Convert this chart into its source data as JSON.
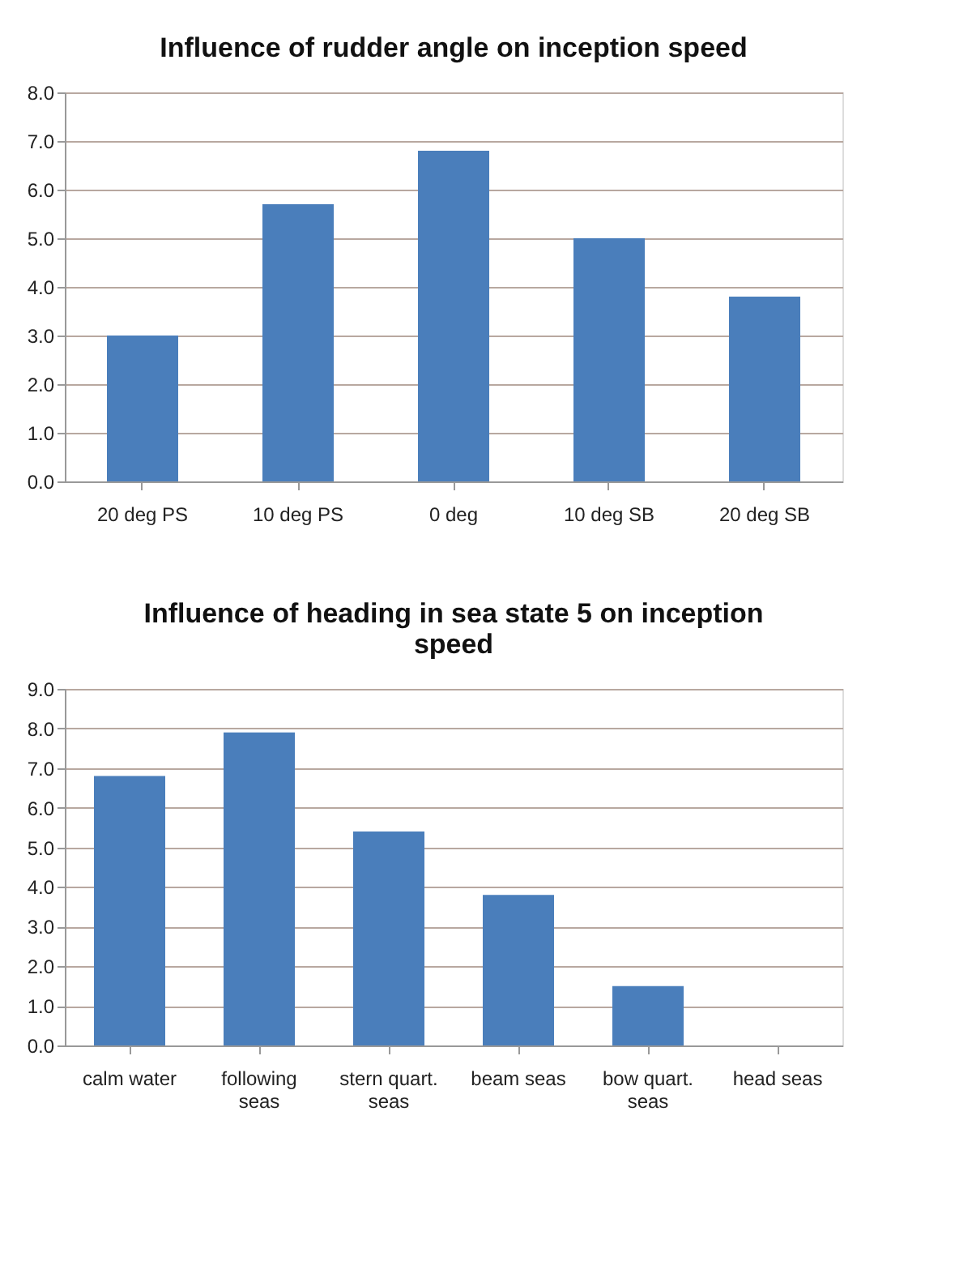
{
  "chart_data": [
    {
      "type": "bar",
      "title": "Influence of rudder angle on inception speed",
      "categories": [
        "20 deg PS",
        "10 deg PS",
        "0 deg",
        "10 deg SB",
        "20 deg SB"
      ],
      "values": [
        3.0,
        5.7,
        6.8,
        5.0,
        3.8
      ],
      "color": "#4a7ebb",
      "ylim": [
        0,
        8
      ],
      "yticks": [
        {
          "value": 0,
          "label": "0.0"
        },
        {
          "value": 1,
          "label": "1.0"
        },
        {
          "value": 2,
          "label": "2.0"
        },
        {
          "value": 3,
          "label": "3.0"
        },
        {
          "value": 4,
          "label": "4.0"
        },
        {
          "value": 5,
          "label": "5.0"
        },
        {
          "value": 6,
          "label": "6.0"
        },
        {
          "value": 7,
          "label": "7.0"
        },
        {
          "value": 8,
          "label": "8.0"
        }
      ],
      "grid": "y"
    },
    {
      "type": "bar",
      "title": "Influence of heading in sea state 5 on inception speed",
      "categories": [
        "calm water",
        "following seas",
        "stern quart. seas",
        "beam seas",
        "bow quart. seas",
        "head seas"
      ],
      "values": [
        6.8,
        7.9,
        5.4,
        3.8,
        1.5,
        0
      ],
      "color": "#4a7ebb",
      "ylim": [
        0,
        9
      ],
      "yticks": [
        {
          "value": 0,
          "label": "0.0"
        },
        {
          "value": 1,
          "label": "1.0"
        },
        {
          "value": 2,
          "label": "2.0"
        },
        {
          "value": 3,
          "label": "3.0"
        },
        {
          "value": 4,
          "label": "4.0"
        },
        {
          "value": 5,
          "label": "5.0"
        },
        {
          "value": 6,
          "label": "6.0"
        },
        {
          "value": 7,
          "label": "7.0"
        },
        {
          "value": 8,
          "label": "8.0"
        },
        {
          "value": 9,
          "label": "9.0"
        }
      ],
      "grid": "y"
    }
  ]
}
